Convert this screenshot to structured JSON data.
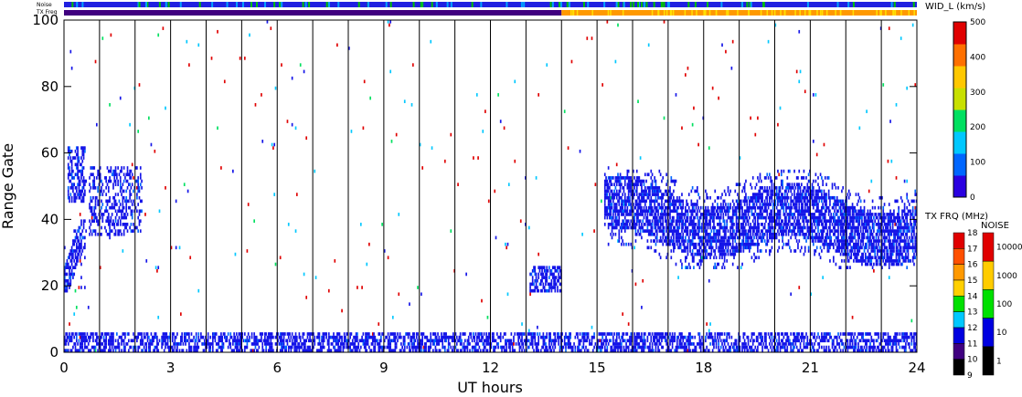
{
  "chart_data": {
    "type": "heatmap",
    "xlabel": "UT hours",
    "ylabel": "Range Gate",
    "xlim": [
      0,
      24
    ],
    "ylim": [
      0,
      100
    ],
    "x_ticks": [
      "0",
      "3",
      "6",
      "9",
      "12",
      "15",
      "18",
      "21",
      "24"
    ],
    "y_ticks": [
      "0",
      "20",
      "40",
      "60",
      "80",
      "100"
    ],
    "hour_gridlines": [
      1,
      2,
      3,
      4,
      5,
      6,
      7,
      8,
      9,
      10,
      11,
      12,
      13,
      14,
      15,
      16,
      17,
      18,
      19,
      20,
      21,
      22,
      23
    ],
    "status_bars": {
      "noise_label": "Noise",
      "txfreq_label": "TX Freq",
      "noise_color": "#2020e0",
      "txfreq_segments": [
        {
          "from": 0,
          "to": 14,
          "color": "#400080"
        },
        {
          "from": 14,
          "to": 24,
          "color": "#ff9900"
        }
      ]
    },
    "colorbars": {
      "width": {
        "title": "WID_L (km/s)",
        "range": [
          0,
          500
        ],
        "ticks": [
          "500",
          "400",
          "300",
          "200",
          "100",
          "0"
        ],
        "colors": [
          "#2a00e0",
          "#0066ff",
          "#00c8ff",
          "#00e060",
          "#c8e000",
          "#ffc800",
          "#ff7000",
          "#e00000"
        ]
      },
      "txfreq": {
        "title": "TX FRQ (MHz)",
        "ticks": [
          "18",
          "17",
          "16",
          "15",
          "14",
          "13",
          "12",
          "11",
          "10",
          "9"
        ],
        "colors": [
          "#e00000",
          "#ff5000",
          "#ff9900",
          "#ffd000",
          "#00e000",
          "#00c8ff",
          "#0000e0",
          "#400080",
          "#000000"
        ]
      },
      "noise": {
        "title": "NOISE",
        "ticks": [
          "10000",
          "1000",
          "100",
          "10",
          "1"
        ],
        "colors": [
          "#e00000",
          "#ffcc00",
          "#00e000",
          "#0000e0",
          "#000000"
        ]
      }
    },
    "echo_regions": [
      {
        "name": "ground-band",
        "t0": 0.0,
        "t1": 24.0,
        "g0": 0,
        "g1": 6,
        "color": "#1515e8",
        "density": 0.55
      },
      {
        "name": "early-rise",
        "t0": 0.0,
        "t1": 0.6,
        "g0": 18,
        "g1": 40,
        "color": "#1515e8",
        "density": 0.65
      },
      {
        "name": "early-high",
        "t0": 0.1,
        "t1": 0.6,
        "g0": 45,
        "g1": 62,
        "color": "#1515e8",
        "density": 0.55
      },
      {
        "name": "early-burst",
        "t0": 0.7,
        "t1": 2.2,
        "g0": 35,
        "g1": 56,
        "color": "#1515e8",
        "density": 0.35
      },
      {
        "name": "midday-patch",
        "t0": 13.1,
        "t1": 14.0,
        "g0": 18,
        "g1": 26,
        "color": "#1515e8",
        "density": 0.6
      },
      {
        "name": "evening-band",
        "t0": 15.2,
        "t1": 24.0,
        "g0": 25,
        "g1": 55,
        "color": "#1515e8",
        "density": 0.45
      }
    ],
    "scatter_density": 0.004
  }
}
